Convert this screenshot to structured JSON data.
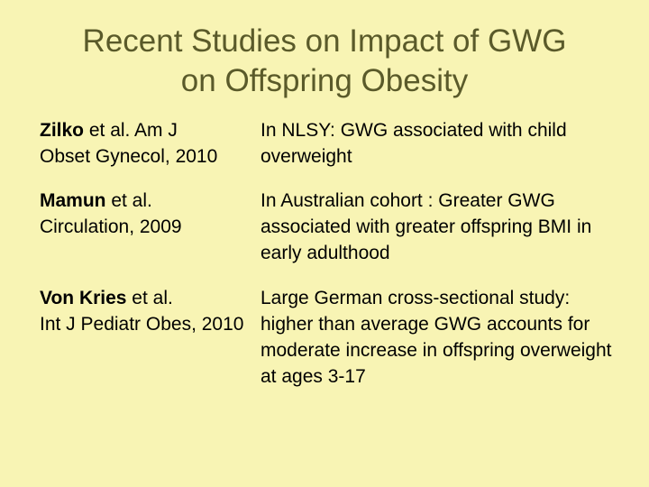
{
  "slide": {
    "background_color": "#f8f4b4",
    "title_color": "#5a5a2a",
    "title": {
      "line1": "Recent Studies on  Impact of GWG",
      "line2": "on Offspring Obesity"
    },
    "studies": [
      {
        "author": "Zilko",
        "ref_line1_rest": " et al. Am J",
        "ref_line2": "Obset Gynecol, 2010",
        "finding": "In NLSY: GWG associated with child overweight"
      },
      {
        "author": "Mamun",
        "ref_line1_rest": " et al.",
        "ref_line2": "Circulation, 2009",
        "finding": "In Australian cohort : Greater GWG associated with greater offspring BMI in early adulthood"
      },
      {
        "author": "Von Kries",
        "ref_line1_rest": " et al.",
        "ref_line2": "Int J Pediatr Obes, 2010",
        "finding": "Large German cross-sectional study: higher than average GWG accounts for moderate increase in offspring overweight at ages 3-17"
      }
    ]
  }
}
